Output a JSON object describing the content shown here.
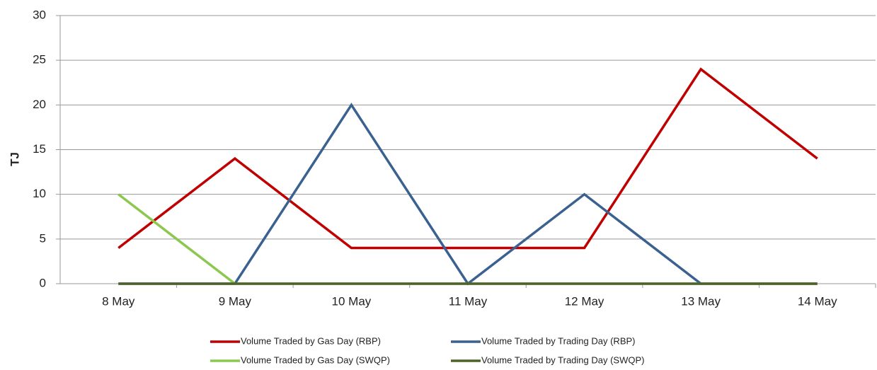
{
  "chart_data": {
    "type": "line",
    "y_label": "TJ",
    "categories": [
      "8 May",
      "9 May",
      "10 May",
      "11 May",
      "12 May",
      "13 May",
      "14 May"
    ],
    "series": [
      {
        "name": "Volume Traded by Gas Day (RBP)",
        "color": "#c00000",
        "values": [
          4,
          14,
          4,
          4,
          4,
          24,
          14
        ]
      },
      {
        "name": "Volume Traded by Trading Day (RBP)",
        "color": "#3a6190",
        "values": [
          0,
          0,
          20,
          0,
          10,
          0,
          0
        ]
      },
      {
        "name": "Volume Traded by Gas Day (SWQP)",
        "color": "#8cc850",
        "values": [
          10,
          0,
          0,
          0,
          0,
          0,
          0
        ]
      },
      {
        "name": "Volume Traded by Trading Day (SWQP)",
        "color": "#4f6228",
        "values": [
          0,
          0,
          0,
          0,
          0,
          0,
          0
        ]
      }
    ],
    "ylim": [
      0,
      30
    ],
    "yticks": [
      0,
      5,
      10,
      15,
      20,
      25,
      30
    ],
    "grid": true
  }
}
